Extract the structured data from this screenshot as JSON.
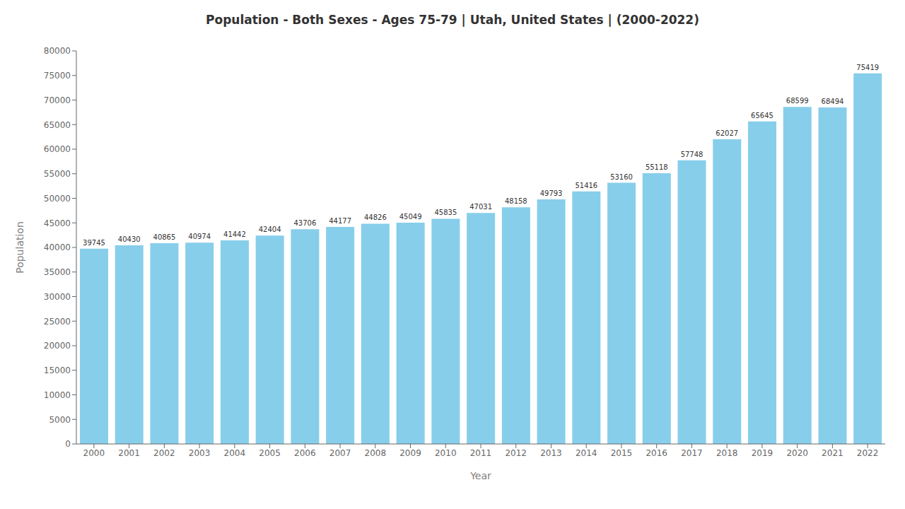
{
  "chart_data": {
    "type": "bar",
    "title": "Population - Both Sexes - Ages 75-79 | Utah, United States |  (2000-2022)",
    "x_label": "Year",
    "y_label": "Population",
    "categories": [
      "2000",
      "2001",
      "2002",
      "2003",
      "2004",
      "2005",
      "2006",
      "2007",
      "2008",
      "2009",
      "2010",
      "2011",
      "2012",
      "2013",
      "2014",
      "2015",
      "2016",
      "2017",
      "2018",
      "2019",
      "2020",
      "2021",
      "2022"
    ],
    "values": [
      39745,
      40430,
      40865,
      40974,
      41442,
      42404,
      43706,
      44177,
      44826,
      45049,
      45835,
      47031,
      48158,
      49793,
      51416,
      53160,
      55118,
      57748,
      62027,
      65645,
      68599,
      68494,
      75419
    ],
    "color": "#87ceeb",
    "ylim": [
      0,
      80000
    ],
    "yticks": [
      0,
      5000,
      10000,
      15000,
      20000,
      25000,
      30000,
      35000,
      40000,
      45000,
      50000,
      55000,
      60000,
      65000,
      70000,
      75000,
      80000
    ],
    "grid": false,
    "data_labels": true
  }
}
